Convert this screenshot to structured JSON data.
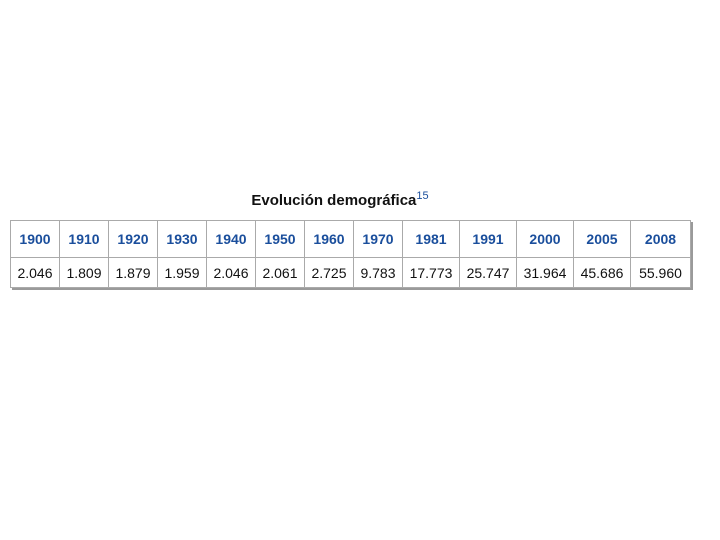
{
  "title": {
    "text": "Evolución demográfica",
    "ref": "15"
  },
  "table": {
    "header": [
      "1900",
      "1910",
      "1920",
      "1930",
      "1940",
      "1950",
      "1960",
      "1970",
      "1981",
      "1991",
      "2000",
      "2005",
      "2008"
    ],
    "rows": [
      [
        "2.046",
        "1.809",
        "1.879",
        "1.959",
        "2.046",
        "2.061",
        "2.725",
        "9.783",
        "17.773",
        "25.747",
        "31.964",
        "45.686",
        "55.960"
      ]
    ]
  }
}
